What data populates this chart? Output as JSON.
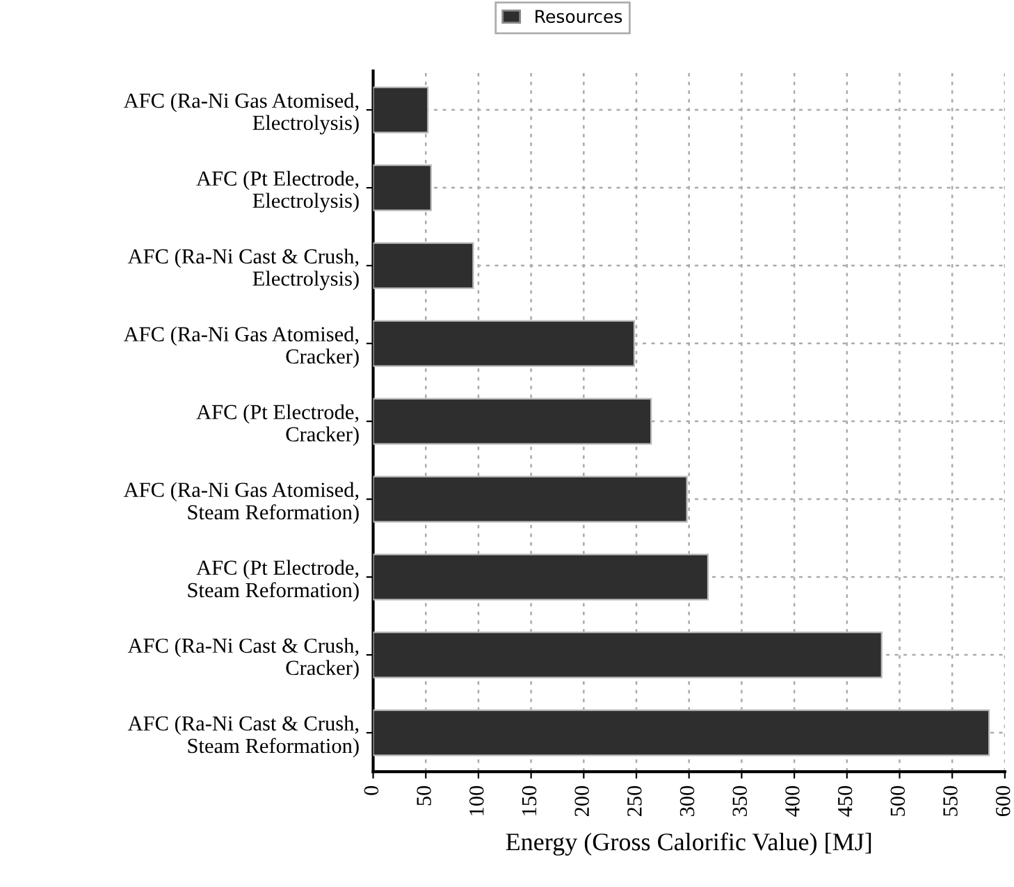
{
  "chart_data": {
    "type": "bar",
    "orientation": "horizontal",
    "xlabel": "Energy (Gross Calorific Value) [MJ]",
    "categories": [
      "AFC (Ra-Ni Gas Atomised,\nElectrolysis)",
      "AFC (Pt Electrode,\nElectrolysis)",
      "AFC (Ra-Ni Cast & Crush,\nElectrolysis)",
      "AFC (Ra-Ni Gas Atomised,\nCracker)",
      "AFC (Pt Electrode,\nCracker)",
      "AFC (Ra-Ni Gas Atomised,\nSteam Reformation)",
      "AFC (Pt Electrode,\nSteam Reformation)",
      "AFC (Ra-Ni Cast & Crush,\nCracker)",
      "AFC (Ra-Ni Cast & Crush,\nSteam Reformation)"
    ],
    "series": [
      {
        "name": "Resources",
        "color": "#2e2e2e",
        "values": [
          52,
          55,
          95,
          248,
          264,
          298,
          318,
          483,
          585
        ]
      }
    ],
    "xlim": [
      0,
      600
    ],
    "xticks": [
      0,
      50,
      100,
      150,
      200,
      250,
      300,
      350,
      400,
      450,
      500,
      550,
      600
    ],
    "grid": true,
    "legend": "top"
  }
}
